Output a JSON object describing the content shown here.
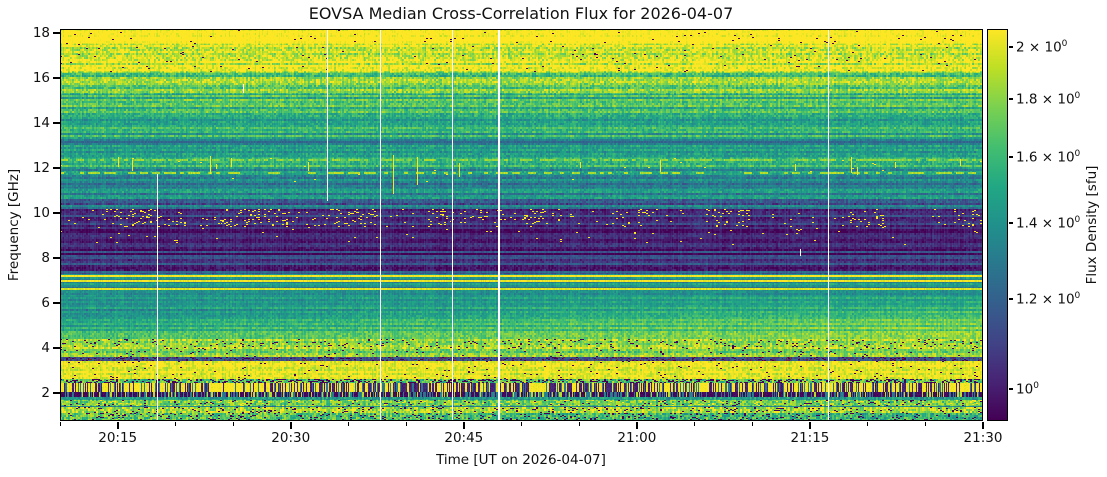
{
  "figure": {
    "title": "EOVSA Median Cross-Correlation Flux for 2026-04-07",
    "x_axis": {
      "label": "Time [UT on 2026-04-07]",
      "ticks": [
        {
          "label": "20:15",
          "minute": 5
        },
        {
          "label": "20:30",
          "minute": 20
        },
        {
          "label": "20:45",
          "minute": 35
        },
        {
          "label": "21:00",
          "minute": 50
        },
        {
          "label": "21:15",
          "minute": 65
        },
        {
          "label": "21:30",
          "minute": 80
        }
      ],
      "minor_step_minutes": 5
    },
    "y_axis": {
      "label": "Frequency [GHz]",
      "ticks": [
        "18",
        "16",
        "14",
        "12",
        "10",
        "8",
        "6",
        "4",
        "2"
      ]
    },
    "colorbar": {
      "label": "Flux Density [sfu]",
      "ticks": [
        {
          "value": 2.0,
          "mantissa": "2 × 10",
          "exponent": "0"
        },
        {
          "value": 1.8,
          "mantissa": "1.8 × 10",
          "exponent": "0"
        },
        {
          "value": 1.6,
          "mantissa": "1.6 × 10",
          "exponent": "0"
        },
        {
          "value": 1.4,
          "mantissa": "1.4 × 10",
          "exponent": "0"
        },
        {
          "value": 1.2,
          "mantissa": "1.2 × 10",
          "exponent": "0"
        },
        {
          "value": 1.0,
          "mantissa": "10",
          "exponent": "0"
        }
      ]
    }
  },
  "chart_data": {
    "type": "heatmap",
    "title": "EOVSA Median Cross-Correlation Flux for 2026-04-07",
    "xlabel": "Time [UT on 2026-04-07]",
    "ylabel": "Frequency [GHz]",
    "colorbar_label": "Flux Density [sfu]",
    "x_tick_labels": [
      "20:15",
      "20:30",
      "20:45",
      "21:00",
      "21:15",
      "21:30"
    ],
    "x_span_minutes": 80,
    "y_range_ghz": [
      0.75,
      18.2
    ],
    "y_ticks_ghz": [
      2,
      4,
      6,
      8,
      10,
      12,
      14,
      16,
      18
    ],
    "colormap": "viridis",
    "viridis_stops": [
      "#440154",
      "#482475",
      "#414487",
      "#355f8d",
      "#2a788e",
      "#21918c",
      "#22a884",
      "#44bf70",
      "#7ad151",
      "#bddf26",
      "#fde725"
    ],
    "flux_scale": {
      "type": "log",
      "vmin": 0.937,
      "vmax": 2.075,
      "unit": "sfu"
    },
    "bands": [
      {
        "f": [
          18.2,
          17.55
        ],
        "v": 2.08,
        "n": 0.05,
        "s": 0.04,
        "sd": 0.012
      },
      {
        "f": [
          17.55,
          16.3
        ],
        "v": 1.95,
        "n": 0.1,
        "s": 0.1,
        "sd": 0.008
      },
      {
        "f": [
          16.3,
          15.3
        ],
        "v": 1.74,
        "n": 0.09,
        "s": 0.1
      },
      {
        "f": [
          15.3,
          14.3
        ],
        "v": 1.62,
        "n": 0.08,
        "s": 0.1
      },
      {
        "f": [
          14.3,
          13.3
        ],
        "v": 1.52,
        "n": 0.07,
        "s": 0.1
      },
      {
        "f": [
          13.3,
          13.05
        ],
        "v": 1.33,
        "n": 0.06,
        "s": 0.08
      },
      {
        "f": [
          13.05,
          12.45
        ],
        "v": 1.49,
        "n": 0.07,
        "s": 0.12
      },
      {
        "f": [
          12.45,
          11.95
        ],
        "v": 1.56,
        "n": 0.08,
        "s": 0.1,
        "sy": 0.004
      },
      {
        "f": [
          11.95,
          11.35
        ],
        "v": 1.4,
        "n": 0.07,
        "s": 0.1,
        "sy": 0.002
      },
      {
        "f": [
          11.35,
          11.1
        ],
        "v": 1.27,
        "n": 0.06,
        "s": 0.08
      },
      {
        "f": [
          11.1,
          10.62
        ],
        "v": 1.36,
        "n": 0.07,
        "s": 0.1
      },
      {
        "f": [
          10.62,
          10.2
        ],
        "v": 1.26,
        "n": 0.07,
        "s": 0.16
      },
      {
        "f": [
          10.2,
          9.38
        ],
        "v": 1.07,
        "n": 0.05,
        "s": 0.08,
        "sy": 0.1,
        "patchy": true
      },
      {
        "f": [
          9.38,
          8.6
        ],
        "v": 1.0,
        "n": 0.04,
        "s": 0.06,
        "sy": 0.006
      },
      {
        "f": [
          8.6,
          7.42
        ],
        "v": 1.06,
        "n": 0.05,
        "s": 0.14
      },
      {
        "f": [
          7.42,
          7.28
        ],
        "v": 1.18,
        "n": 0.05,
        "s": 0.06
      },
      {
        "f": [
          7.28,
          6.3
        ],
        "v": 1.38,
        "n": 0.05,
        "s": 0.1
      },
      {
        "f": [
          6.3,
          5.72
        ],
        "v": 1.44,
        "n": 0.05,
        "s": 0.1,
        "tg": [
          0.97,
          1.04
        ]
      },
      {
        "f": [
          5.72,
          4.82
        ],
        "v": 1.52,
        "n": 0.06,
        "s": 0.08,
        "tg": [
          0.92,
          1.07
        ],
        "gd": [
          0.94,
          1.1
        ]
      },
      {
        "f": [
          4.82,
          4.38
        ],
        "v": 1.62,
        "n": 0.07,
        "s": 0.08,
        "tg": [
          0.95,
          1.05
        ]
      },
      {
        "f": [
          4.38,
          3.96
        ],
        "v": 1.86,
        "n": 0.1,
        "s": 0.06,
        "sd": 0.06
      },
      {
        "f": [
          3.96,
          3.62
        ],
        "v": 1.78,
        "n": 0.09,
        "s": 0.08,
        "sd": 0.02
      },
      {
        "f": [
          3.62,
          3.42
        ],
        "v": 1.14,
        "n": 0.08,
        "sd": 0.1,
        "mrn": 0.08
      },
      {
        "f": [
          3.42,
          2.64
        ],
        "v": 2.0,
        "n": 0.07,
        "s": 0.05,
        "sd": 0.02
      },
      {
        "f": [
          2.64,
          2.42
        ],
        "v": 1.7,
        "n": 0.15,
        "sd": 0.3
      },
      {
        "f": [
          2.42,
          2.03
        ],
        "bc": "upper"
      },
      {
        "f": [
          2.03,
          1.8
        ],
        "bc": "lower"
      },
      {
        "f": [
          1.8,
          1.7
        ],
        "v": 1.45,
        "n": 0.1
      },
      {
        "f": [
          1.7,
          1.4
        ],
        "v": 1.75,
        "n": 0.12,
        "sd": 0.06,
        "sy": 0.05
      },
      {
        "f": [
          1.4,
          1.36
        ],
        "v": 1.35,
        "n": 0.1
      },
      {
        "f": [
          1.36,
          1.1
        ],
        "v": 1.88,
        "n": 0.12,
        "sd": 0.08
      },
      {
        "f": [
          1.1,
          0.75
        ],
        "v": 1.68,
        "n": 0.14,
        "sd": 0.1,
        "tg": [
          1.02,
          0.92
        ]
      }
    ],
    "h_lines": [
      {
        "f": 13.17,
        "w": 0.1,
        "v": 1.22
      },
      {
        "f": 12.36,
        "w": 0.07,
        "v": 1.82,
        "dash": 0.45
      },
      {
        "f": 11.8,
        "w": 0.07,
        "v": 1.88,
        "dash": 0.55
      },
      {
        "f": 7.21,
        "w": 0.1,
        "v": 2.06
      },
      {
        "f": 7.0,
        "w": 0.09,
        "v": 2.04
      },
      {
        "f": 6.64,
        "w": 0.08,
        "v": 1.98
      }
    ],
    "barcode": {
      "upper": {
        "p_dark": 0.28,
        "p_mid": 0.43,
        "v_dark": 0.98,
        "v_mid": 1.28,
        "v_bright": 2.02
      },
      "lower": {
        "p_dark": 0.55,
        "p_mid": 0.85,
        "v_dark": 0.955,
        "v_mid": 1.24,
        "v_bright": 1.9
      },
      "dark_stretch_min": [
        28.6,
        51.1
      ],
      "dark_stretch_boost": 0.27,
      "bright_patch_min": [
        40.7,
        42.2
      ]
    },
    "data_gaps": [
      {
        "t_min": 8.4,
        "f": [
          11.75,
          0.75
        ],
        "w": 1
      },
      {
        "t_min": 15.9,
        "f": [
          15.75,
          15.33
        ],
        "w": 1
      },
      {
        "t_min": 23.1,
        "f": [
          18.2,
          10.55
        ],
        "w": 1
      },
      {
        "t_min": 27.7,
        "f": [
          18.2,
          0.75
        ],
        "w": 1
      },
      {
        "t_min": 34.0,
        "f": [
          18.2,
          0.75
        ],
        "w": 1
      },
      {
        "t_min": 38.0,
        "f": [
          18.2,
          0.75
        ],
        "w": 2
      },
      {
        "t_min": 64.1,
        "f": [
          8.4,
          8.1
        ],
        "w": 1
      },
      {
        "t_min": 66.6,
        "f": [
          18.2,
          0.75
        ],
        "w": 1
      }
    ],
    "rfi_spikes": [
      {
        "t": 5.0,
        "f": [
          12.5,
          12.05
        ]
      },
      {
        "t": 6.2,
        "f": [
          12.35,
          11.9
        ]
      },
      {
        "t": 13.0,
        "f": [
          12.55,
          11.75
        ]
      },
      {
        "t": 13.5,
        "f": [
          12.2,
          11.95
        ]
      },
      {
        "t": 14.8,
        "f": [
          12.45,
          12.05
        ]
      },
      {
        "t": 21.5,
        "f": [
          12.3,
          11.9
        ]
      },
      {
        "t": 28.9,
        "f": [
          12.6,
          10.85
        ]
      },
      {
        "t": 30.9,
        "f": [
          12.5,
          11.25
        ]
      },
      {
        "t": 34.6,
        "f": [
          12.25,
          11.6
        ]
      },
      {
        "t": 45.1,
        "f": [
          12.3,
          12.0
        ]
      },
      {
        "t": 52.0,
        "f": [
          12.35,
          11.85
        ]
      },
      {
        "t": 63.7,
        "f": [
          12.2,
          11.9
        ]
      },
      {
        "t": 68.6,
        "f": [
          12.5,
          11.8
        ]
      },
      {
        "t": 69.1,
        "f": [
          12.05,
          11.7
        ]
      },
      {
        "t": 72.4,
        "f": [
          12.3,
          12.0
        ]
      },
      {
        "t": 78.0,
        "f": [
          12.4,
          12.1
        ]
      }
    ],
    "maroon_dot_color": "#80202f",
    "gap_color": "#ffffff"
  }
}
